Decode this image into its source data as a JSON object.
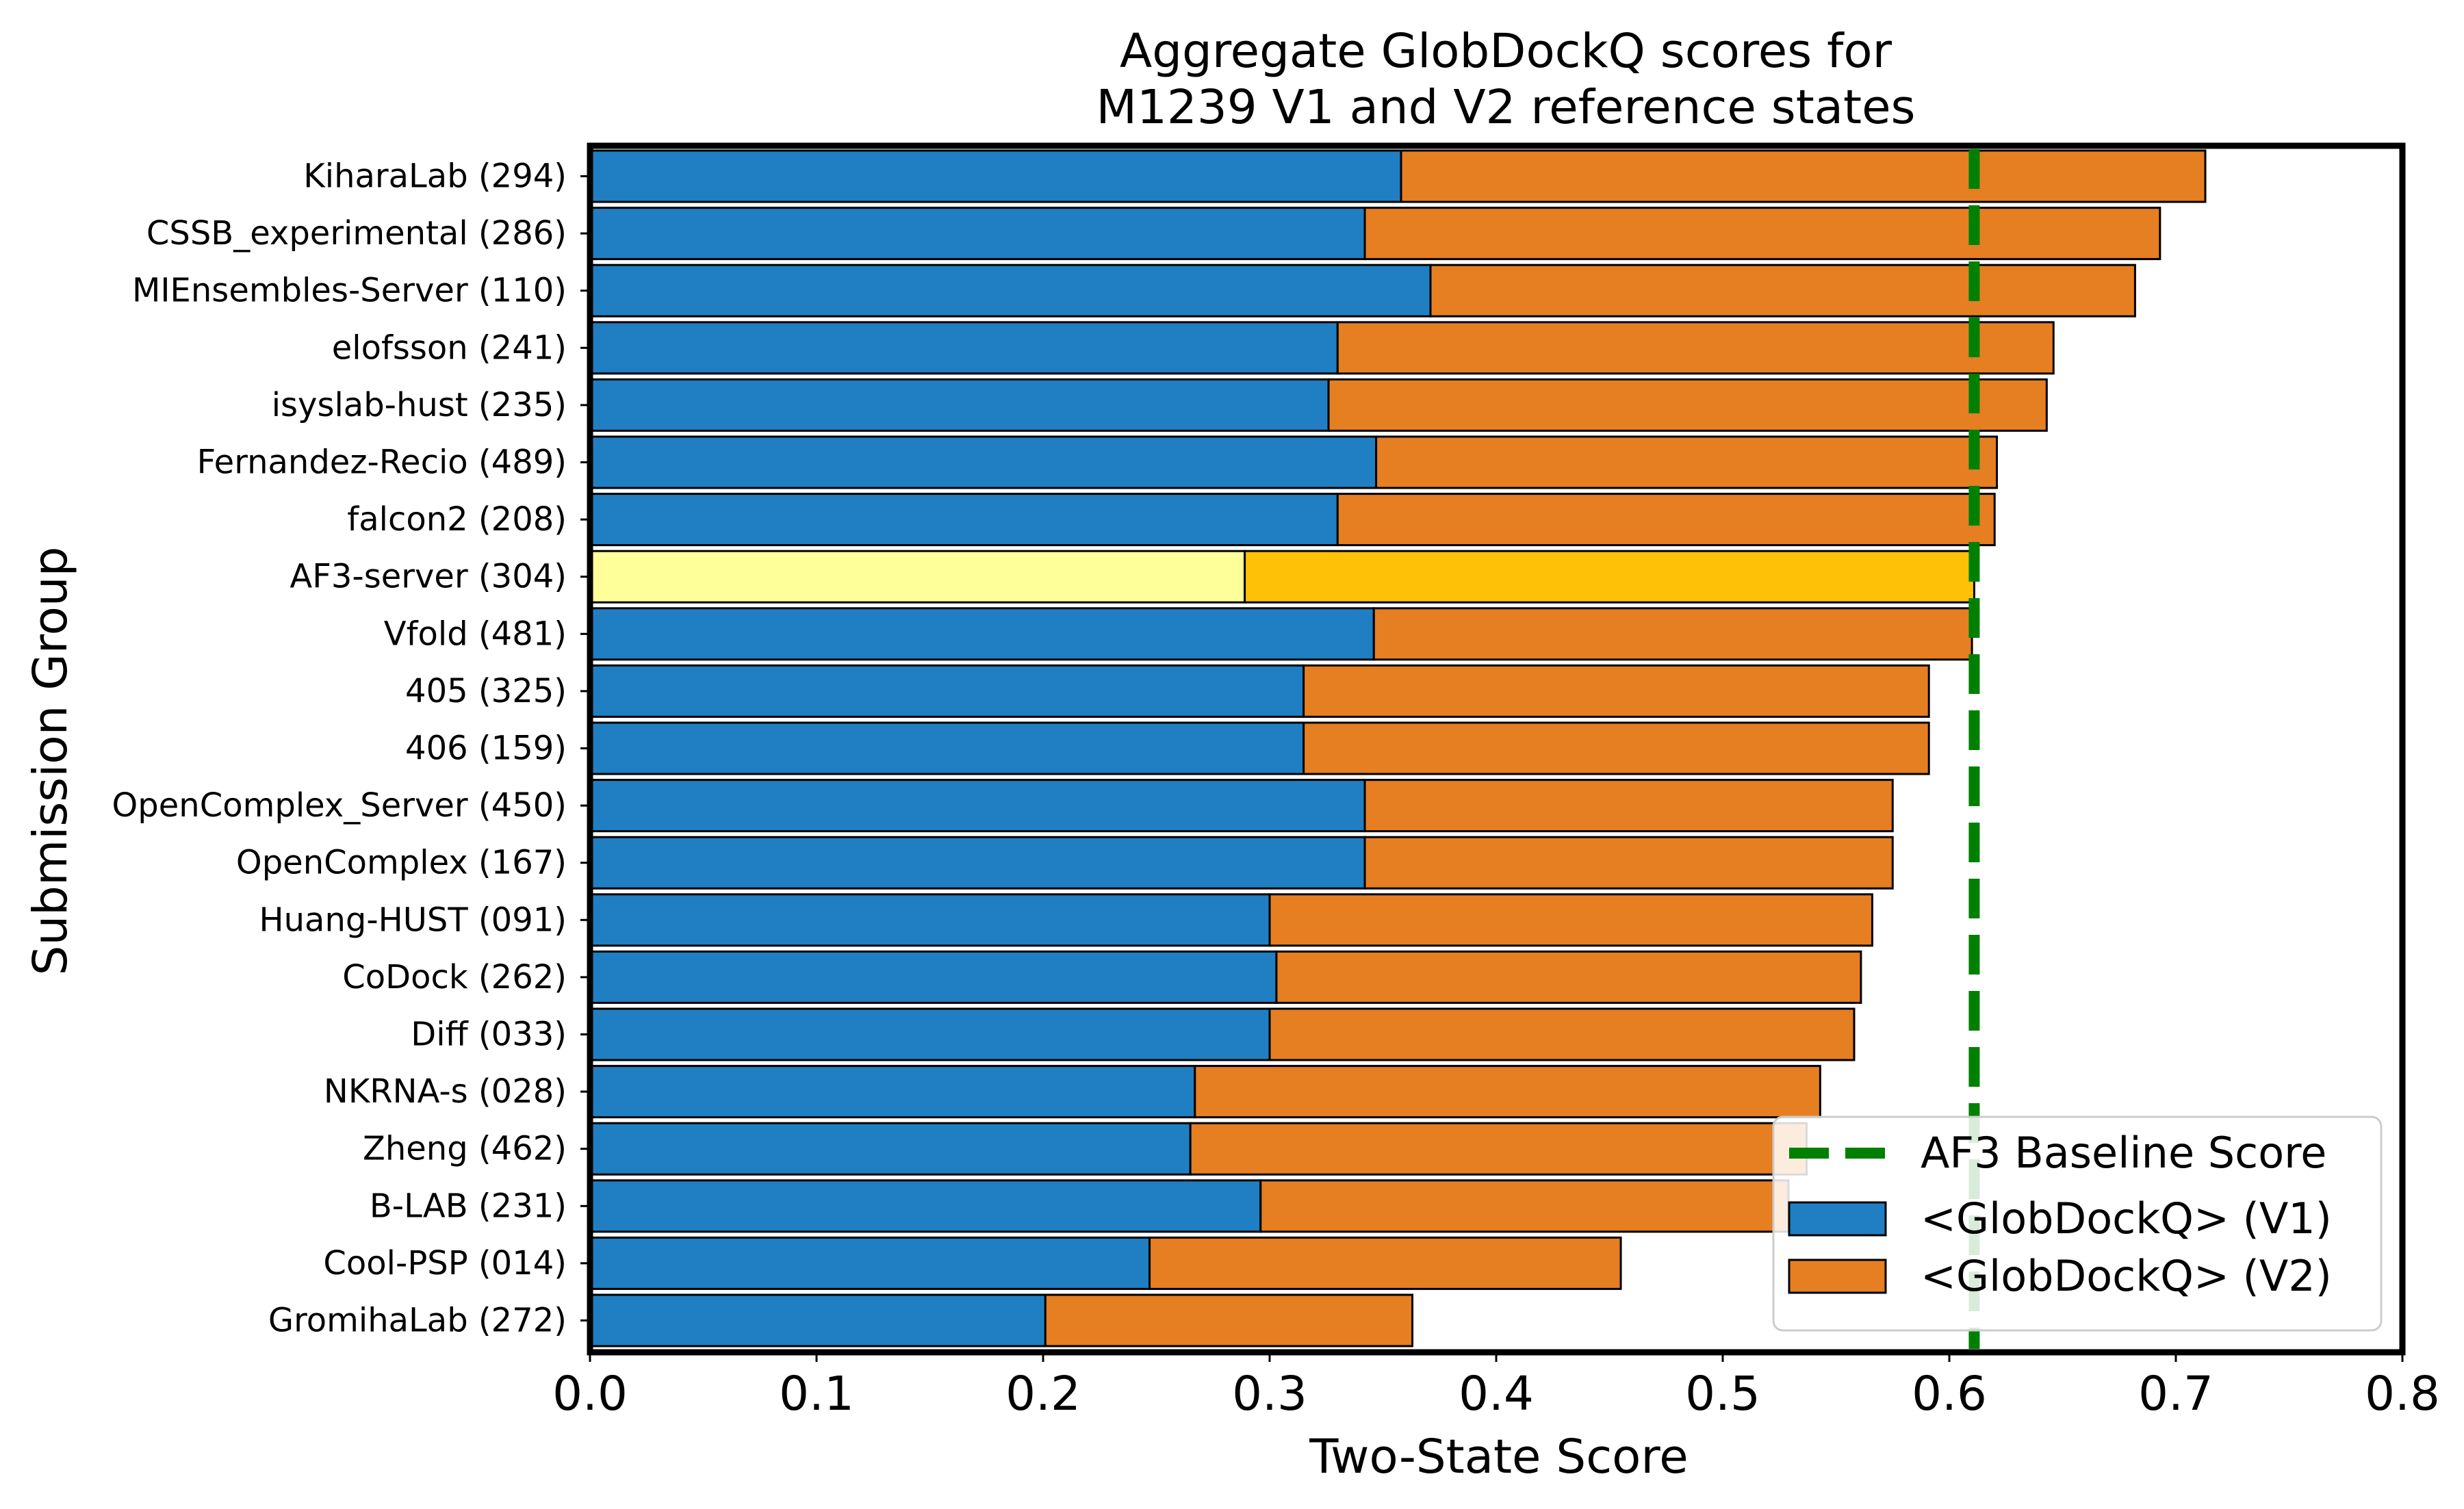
{
  "chart_data": {
    "type": "bar",
    "orientation": "horizontal",
    "stacked": true,
    "title": "Aggregate GlobDockQ scores for\nM1239 V1 and V2 reference states",
    "xlabel": "Two-State Score",
    "ylabel": "Submission Group",
    "xlim": [
      0.0,
      0.8
    ],
    "xticks": [
      "0.0",
      "0.1",
      "0.2",
      "0.3",
      "0.4",
      "0.5",
      "0.6",
      "0.7",
      "0.8"
    ],
    "grid": false,
    "legend_position": "bottom-right",
    "categories": [
      "KiharaLab (294)",
      "CSSB_experimental (286)",
      "MIEnsembles-Server (110)",
      "elofsson (241)",
      "isyslab-hust (235)",
      "Fernandez-Recio (489)",
      "falcon2 (208)",
      "AF3-server (304)",
      "Vfold (481)",
      "405 (325)",
      "406 (159)",
      "OpenComplex_Server (450)",
      "OpenComplex (167)",
      "Huang-HUST (091)",
      "CoDock (262)",
      "Diff (033)",
      "NKRNA-s (028)",
      "Zheng (462)",
      "B-LAB (231)",
      "Cool-PSP (014)",
      "GromihaLab (272)"
    ],
    "series": [
      {
        "name": "<GlobDockQ> (V1)",
        "color": "#1f7fc2",
        "values": [
          0.358,
          0.342,
          0.371,
          0.33,
          0.326,
          0.347,
          0.33,
          0.289,
          0.346,
          0.315,
          0.315,
          0.342,
          0.342,
          0.3,
          0.303,
          0.3,
          0.267,
          0.265,
          0.296,
          0.247,
          0.201
        ]
      },
      {
        "name": "<GlobDockQ> (V2)",
        "color": "#e67e22",
        "values": [
          0.355,
          0.351,
          0.311,
          0.316,
          0.317,
          0.274,
          0.29,
          0.322,
          0.264,
          0.276,
          0.276,
          0.233,
          0.233,
          0.266,
          0.258,
          0.258,
          0.276,
          0.272,
          0.233,
          0.208,
          0.162
        ]
      }
    ],
    "highlight": {
      "category": "AF3-server (304)",
      "v1_color": "#ffff99",
      "v2_color": "#ffc107"
    },
    "reference_line": {
      "name": "AF3 Baseline Score",
      "value": 0.611,
      "color": "#008000",
      "style": "dashed"
    }
  }
}
